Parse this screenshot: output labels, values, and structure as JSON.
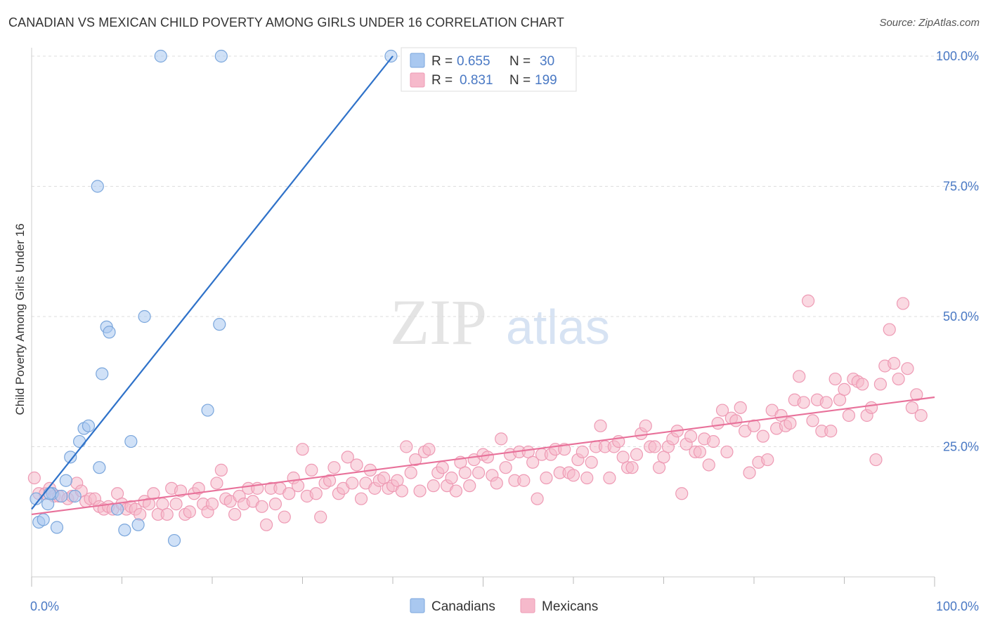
{
  "title": "CANADIAN VS MEXICAN CHILD POVERTY AMONG GIRLS UNDER 16 CORRELATION CHART",
  "source": "Source: ZipAtlas.com",
  "watermark": {
    "zip": "ZIP",
    "atlas": "atlas"
  },
  "legend": {
    "canadians": {
      "r_label": "R =",
      "r": "0.655",
      "n_label": "N =",
      "n": "30"
    },
    "mexicans": {
      "r_label": "R =",
      "r": "0.831",
      "n_label": "N =",
      "n": "199"
    }
  },
  "bottom_legend": {
    "canadians": "Canadians",
    "mexicans": "Mexicans"
  },
  "colors": {
    "canadians_fill": "#a9c8f0",
    "canadians_stroke": "#7aa6dc",
    "canadians_line": "#2f72c9",
    "mexicans_fill": "#f6b9cb",
    "mexicans_stroke": "#ee9ab4",
    "mexicans_line": "#e8719a",
    "axis_text": "#4a79c4",
    "grid": "#dddddd"
  },
  "chart_data": {
    "type": "scatter",
    "title": "CANADIAN VS MEXICAN CHILD POVERTY AMONG GIRLS UNDER 16 CORRELATION CHART",
    "xlabel": "",
    "ylabel": "Child Poverty Among Girls Under 16",
    "xlim": [
      0,
      100
    ],
    "ylim": [
      0,
      100
    ],
    "x_tick_labels": [
      "0.0%",
      "100.0%"
    ],
    "y_ticks": [
      25,
      50,
      75,
      100
    ],
    "y_tick_labels": [
      "25.0%",
      "50.0%",
      "75.0%",
      "100.0%"
    ],
    "grid": "horizontal dashed",
    "legend_position": "top-center",
    "series": [
      {
        "name": "Canadians",
        "points": [
          [
            0.5,
            15
          ],
          [
            0.8,
            10.5
          ],
          [
            1.3,
            11
          ],
          [
            1.8,
            14
          ],
          [
            2.3,
            16
          ],
          [
            2.8,
            9.5
          ],
          [
            3.8,
            18.5
          ],
          [
            4.3,
            23
          ],
          [
            4.8,
            15.5
          ],
          [
            5.3,
            26
          ],
          [
            5.8,
            28.5
          ],
          [
            6.3,
            29
          ],
          [
            7.3,
            75
          ],
          [
            7.5,
            21
          ],
          [
            7.8,
            39
          ],
          [
            8.3,
            48
          ],
          [
            8.6,
            47
          ],
          [
            9.5,
            13
          ],
          [
            10.3,
            9
          ],
          [
            11.0,
            26
          ],
          [
            11.8,
            10
          ],
          [
            12.5,
            50
          ],
          [
            14.3,
            100
          ],
          [
            15.8,
            7
          ],
          [
            21.0,
            100
          ],
          [
            19.5,
            32
          ],
          [
            20.8,
            48.5
          ],
          [
            39.8,
            100
          ],
          [
            2.0,
            16
          ],
          [
            3.3,
            15.5
          ]
        ]
      },
      {
        "name": "Mexicans",
        "points": [
          [
            0.3,
            19
          ],
          [
            0.8,
            16
          ],
          [
            1.5,
            16
          ],
          [
            2.0,
            17
          ],
          [
            2.5,
            15.5
          ],
          [
            3.0,
            15.5
          ],
          [
            4.0,
            15
          ],
          [
            4.5,
            15.5
          ],
          [
            5.0,
            18
          ],
          [
            5.5,
            16.5
          ],
          [
            6.0,
            14.5
          ],
          [
            6.5,
            15
          ],
          [
            7.0,
            15
          ],
          [
            7.5,
            13.5
          ],
          [
            8.0,
            13
          ],
          [
            8.5,
            13.5
          ],
          [
            9.0,
            13
          ],
          [
            9.5,
            16
          ],
          [
            10.0,
            14
          ],
          [
            10.5,
            13
          ],
          [
            11.0,
            13.5
          ],
          [
            11.5,
            13
          ],
          [
            12.0,
            12
          ],
          [
            12.5,
            14.5
          ],
          [
            13.0,
            14
          ],
          [
            13.5,
            16
          ],
          [
            14.0,
            12
          ],
          [
            14.5,
            14
          ],
          [
            15.0,
            12
          ],
          [
            15.5,
            17
          ],
          [
            16.0,
            14
          ],
          [
            16.5,
            16.5
          ],
          [
            17.0,
            12
          ],
          [
            17.5,
            12.5
          ],
          [
            18.0,
            16
          ],
          [
            18.5,
            17
          ],
          [
            19.0,
            14
          ],
          [
            19.5,
            12.5
          ],
          [
            20.0,
            14
          ],
          [
            20.5,
            18
          ],
          [
            21.0,
            20.5
          ],
          [
            21.5,
            15
          ],
          [
            22.0,
            14.5
          ],
          [
            22.5,
            12
          ],
          [
            23.0,
            15.5
          ],
          [
            23.5,
            14
          ],
          [
            24.0,
            17
          ],
          [
            24.5,
            14.5
          ],
          [
            25.0,
            17
          ],
          [
            25.5,
            13.5
          ],
          [
            26.0,
            10
          ],
          [
            26.5,
            17
          ],
          [
            27.0,
            14
          ],
          [
            27.5,
            17
          ],
          [
            28.0,
            11.5
          ],
          [
            28.5,
            16
          ],
          [
            29.0,
            19
          ],
          [
            29.5,
            17.5
          ],
          [
            30.0,
            24.5
          ],
          [
            30.5,
            15.5
          ],
          [
            31.0,
            20.5
          ],
          [
            31.5,
            16
          ],
          [
            32.0,
            11.5
          ],
          [
            32.5,
            18
          ],
          [
            33.0,
            18.5
          ],
          [
            33.5,
            21
          ],
          [
            34.0,
            16
          ],
          [
            34.5,
            17
          ],
          [
            35.0,
            23
          ],
          [
            35.5,
            18
          ],
          [
            36.0,
            21.5
          ],
          [
            36.5,
            15
          ],
          [
            37.0,
            18
          ],
          [
            37.5,
            20.5
          ],
          [
            38.0,
            17
          ],
          [
            38.5,
            18.5
          ],
          [
            39.0,
            19
          ],
          [
            39.5,
            17
          ],
          [
            40.0,
            17.5
          ],
          [
            40.5,
            18.5
          ],
          [
            41.0,
            16.5
          ],
          [
            41.5,
            25
          ],
          [
            42.0,
            20
          ],
          [
            42.5,
            22.5
          ],
          [
            43.0,
            16.5
          ],
          [
            43.5,
            24
          ],
          [
            44.0,
            24.5
          ],
          [
            44.5,
            17.5
          ],
          [
            45.0,
            20
          ],
          [
            45.5,
            21
          ],
          [
            46.0,
            17.5
          ],
          [
            46.5,
            19
          ],
          [
            47.0,
            16.5
          ],
          [
            47.5,
            22
          ],
          [
            48.0,
            20
          ],
          [
            48.5,
            17.5
          ],
          [
            49.0,
            22.5
          ],
          [
            49.5,
            20
          ],
          [
            50.0,
            23.5
          ],
          [
            50.5,
            23
          ],
          [
            51.0,
            19.5
          ],
          [
            51.5,
            18
          ],
          [
            52.0,
            26.5
          ],
          [
            52.5,
            21
          ],
          [
            53.0,
            23.5
          ],
          [
            53.5,
            18.5
          ],
          [
            54.0,
            24
          ],
          [
            54.5,
            18.5
          ],
          [
            55.0,
            24
          ],
          [
            55.5,
            22
          ],
          [
            56.0,
            15
          ],
          [
            56.5,
            23.5
          ],
          [
            57.0,
            19
          ],
          [
            57.5,
            23.5
          ],
          [
            58.0,
            24.5
          ],
          [
            58.5,
            20
          ],
          [
            59.0,
            24.5
          ],
          [
            59.5,
            20
          ],
          [
            60.0,
            19.5
          ],
          [
            60.5,
            22.5
          ],
          [
            61.0,
            24
          ],
          [
            61.5,
            19
          ],
          [
            62.0,
            22
          ],
          [
            62.5,
            25
          ],
          [
            63.0,
            29
          ],
          [
            63.5,
            25
          ],
          [
            64.0,
            19
          ],
          [
            64.5,
            25
          ],
          [
            65.0,
            26
          ],
          [
            65.5,
            23
          ],
          [
            66.0,
            21
          ],
          [
            66.5,
            21
          ],
          [
            67.0,
            23.5
          ],
          [
            67.5,
            27.5
          ],
          [
            68.0,
            29
          ],
          [
            68.5,
            25
          ],
          [
            69.0,
            25
          ],
          [
            69.5,
            21
          ],
          [
            70.0,
            23
          ],
          [
            70.5,
            25
          ],
          [
            71.0,
            26.5
          ],
          [
            71.5,
            28
          ],
          [
            72.0,
            16
          ],
          [
            72.5,
            25.5
          ],
          [
            73.0,
            27
          ],
          [
            73.5,
            24
          ],
          [
            74.0,
            24
          ],
          [
            74.5,
            26.5
          ],
          [
            75.0,
            21.5
          ],
          [
            75.5,
            26
          ],
          [
            76.0,
            29.5
          ],
          [
            76.5,
            32
          ],
          [
            77.0,
            24
          ],
          [
            77.5,
            30.5
          ],
          [
            78.0,
            30
          ],
          [
            78.5,
            32.5
          ],
          [
            79.0,
            28
          ],
          [
            79.5,
            20
          ],
          [
            80.0,
            29
          ],
          [
            80.5,
            22
          ],
          [
            81.0,
            27
          ],
          [
            81.5,
            22.5
          ],
          [
            82.0,
            32
          ],
          [
            82.5,
            28.5
          ],
          [
            83.0,
            31
          ],
          [
            83.5,
            29
          ],
          [
            84.0,
            29.5
          ],
          [
            84.5,
            34
          ],
          [
            85.0,
            38.5
          ],
          [
            85.5,
            33.5
          ],
          [
            86.0,
            53
          ],
          [
            86.5,
            30
          ],
          [
            87.0,
            34
          ],
          [
            87.5,
            28
          ],
          [
            88.0,
            33.5
          ],
          [
            88.5,
            28
          ],
          [
            89.0,
            38
          ],
          [
            89.5,
            34
          ],
          [
            90.0,
            36
          ],
          [
            90.5,
            31
          ],
          [
            91.0,
            38
          ],
          [
            91.5,
            37.5
          ],
          [
            92.0,
            37
          ],
          [
            92.5,
            31
          ],
          [
            93.0,
            32.5
          ],
          [
            93.5,
            22.5
          ],
          [
            94.0,
            37
          ],
          [
            94.5,
            40.5
          ],
          [
            95.0,
            47.5
          ],
          [
            95.5,
            41
          ],
          [
            96.0,
            38
          ],
          [
            96.5,
            52.5
          ],
          [
            97.0,
            40
          ],
          [
            97.5,
            32.5
          ],
          [
            98.0,
            35
          ],
          [
            98.5,
            31
          ]
        ]
      }
    ],
    "trend_lines": [
      {
        "name": "Canadians",
        "x": [
          0,
          40
        ],
        "y": [
          13,
          100
        ]
      },
      {
        "name": "Mexicans",
        "x": [
          0,
          100
        ],
        "y": [
          12,
          34.5
        ]
      }
    ]
  }
}
